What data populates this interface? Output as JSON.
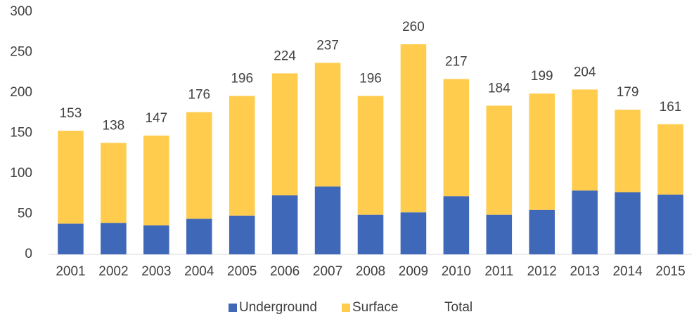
{
  "chart_data": {
    "type": "stacked_bar",
    "categories": [
      "2001",
      "2002",
      "2003",
      "2004",
      "2005",
      "2006",
      "2007",
      "2008",
      "2009",
      "2010",
      "2011",
      "2012",
      "2013",
      "2014",
      "2015"
    ],
    "series": [
      {
        "name": "Underground",
        "color": "#4068b8",
        "values": [
          38,
          39,
          36,
          44,
          48,
          73,
          84,
          49,
          52,
          72,
          49,
          55,
          79,
          77,
          74
        ]
      },
      {
        "name": "Surface",
        "color": "#ffcc4d",
        "values": [
          115,
          99,
          111,
          132,
          148,
          151,
          153,
          147,
          208,
          145,
          135,
          144,
          125,
          102,
          87
        ]
      },
      {
        "name": "Total",
        "values": [
          153,
          138,
          147,
          176,
          196,
          224,
          237,
          196,
          260,
          217,
          184,
          199,
          204,
          179,
          161
        ]
      }
    ],
    "ylim": [
      0,
      300
    ],
    "yticks": [
      0,
      50,
      100,
      150,
      200,
      250,
      300
    ],
    "grid": false,
    "legend": "bottom"
  }
}
